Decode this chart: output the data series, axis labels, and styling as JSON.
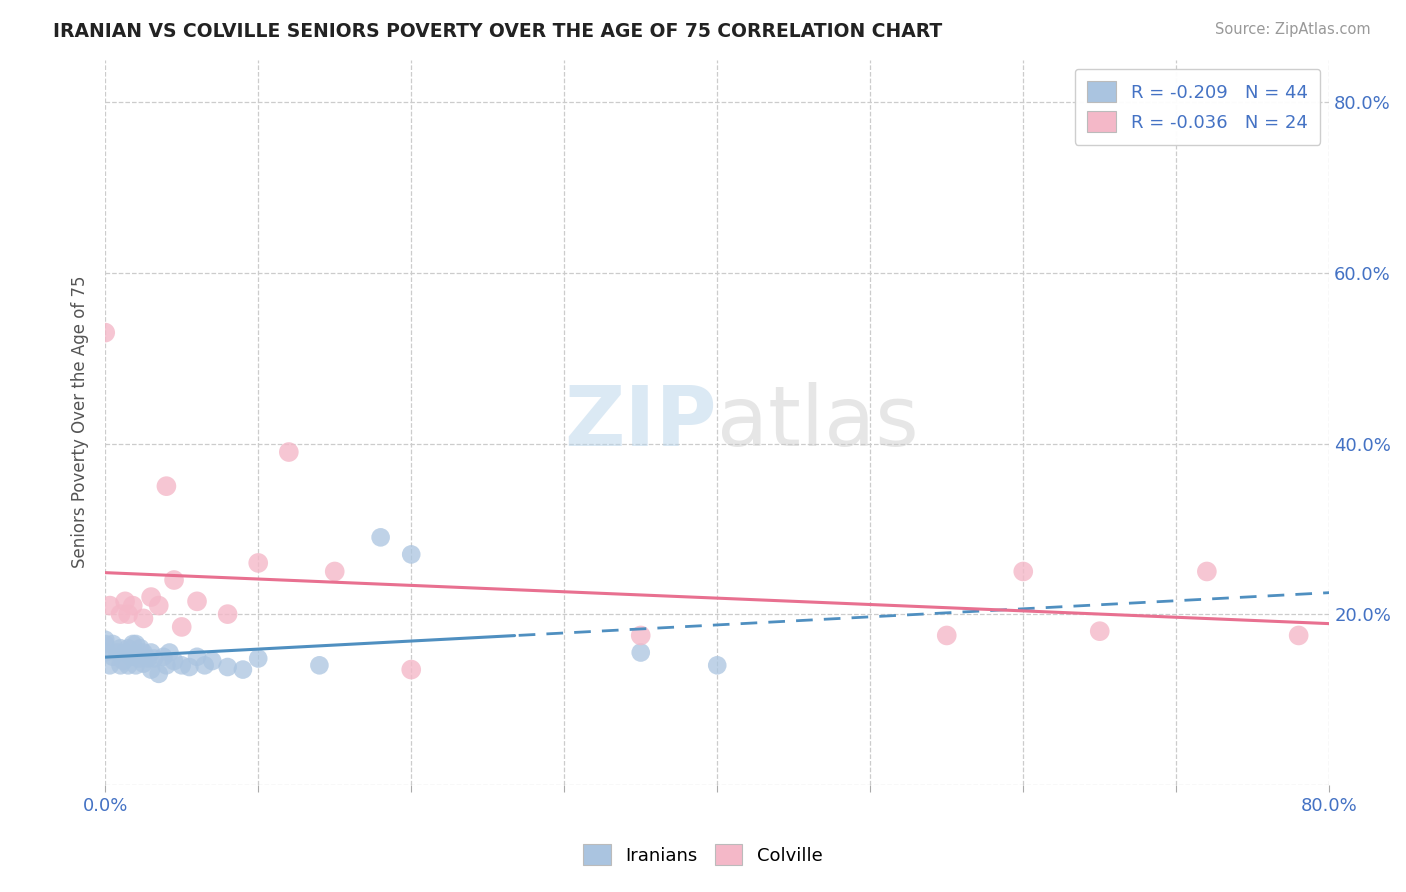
{
  "title": "IRANIAN VS COLVILLE SENIORS POVERTY OVER THE AGE OF 75 CORRELATION CHART",
  "source": "Source: ZipAtlas.com",
  "ylabel": "Seniors Poverty Over the Age of 75",
  "xlim": [
    0.0,
    0.8
  ],
  "ylim": [
    0.0,
    0.85
  ],
  "x_tick_positions": [
    0.0,
    0.1,
    0.2,
    0.3,
    0.4,
    0.5,
    0.6,
    0.7,
    0.8
  ],
  "x_tick_labels": [
    "0.0%",
    "",
    "",
    "",
    "",
    "",
    "",
    "",
    "80.0%"
  ],
  "y_tick_positions": [
    0.0,
    0.2,
    0.4,
    0.6,
    0.8
  ],
  "y_tick_labels_right": [
    "",
    "20.0%",
    "40.0%",
    "60.0%",
    "80.0%"
  ],
  "iranian_color": "#aac4e0",
  "colville_color": "#f4b8c8",
  "iranian_line_color": "#4f8fc0",
  "colville_line_color": "#e87090",
  "iranian_R": -0.209,
  "iranian_N": 44,
  "colville_R": -0.036,
  "colville_N": 24,
  "legend_labels": [
    "Iranians",
    "Colville"
  ],
  "watermark_zip": "ZIP",
  "watermark_atlas": "atlas",
  "iranian_x": [
    0.0,
    0.0,
    0.0,
    0.003,
    0.005,
    0.005,
    0.008,
    0.01,
    0.01,
    0.012,
    0.013,
    0.015,
    0.015,
    0.017,
    0.018,
    0.02,
    0.02,
    0.02,
    0.022,
    0.023,
    0.025,
    0.025,
    0.028,
    0.03,
    0.03,
    0.032,
    0.035,
    0.038,
    0.04,
    0.042,
    0.045,
    0.05,
    0.055,
    0.06,
    0.065,
    0.07,
    0.08,
    0.09,
    0.1,
    0.14,
    0.18,
    0.2,
    0.35,
    0.4
  ],
  "iranian_y": [
    0.155,
    0.165,
    0.17,
    0.14,
    0.15,
    0.165,
    0.155,
    0.14,
    0.16,
    0.145,
    0.155,
    0.14,
    0.16,
    0.15,
    0.165,
    0.14,
    0.152,
    0.165,
    0.148,
    0.16,
    0.142,
    0.155,
    0.148,
    0.135,
    0.155,
    0.148,
    0.13,
    0.15,
    0.14,
    0.155,
    0.145,
    0.14,
    0.138,
    0.15,
    0.14,
    0.145,
    0.138,
    0.135,
    0.148,
    0.14,
    0.29,
    0.27,
    0.155,
    0.14
  ],
  "colville_x": [
    0.0,
    0.003,
    0.01,
    0.013,
    0.015,
    0.018,
    0.025,
    0.03,
    0.035,
    0.04,
    0.045,
    0.05,
    0.06,
    0.08,
    0.1,
    0.12,
    0.15,
    0.2,
    0.35,
    0.55,
    0.6,
    0.65,
    0.72,
    0.78
  ],
  "colville_y": [
    0.53,
    0.21,
    0.2,
    0.215,
    0.2,
    0.21,
    0.195,
    0.22,
    0.21,
    0.35,
    0.24,
    0.185,
    0.215,
    0.2,
    0.26,
    0.39,
    0.25,
    0.135,
    0.175,
    0.175,
    0.25,
    0.18,
    0.25,
    0.175
  ]
}
